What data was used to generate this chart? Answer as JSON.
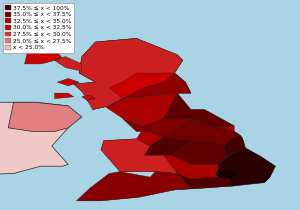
{
  "background_color": "#a8d4e6",
  "sea_color": "#a8d4e6",
  "ireland_color": "#f0c8c8",
  "n_ireland_color": "#e08080",
  "legend_entries": [
    {
      "label": "37.5% ≤ x < 100%",
      "color": "#3d0000"
    },
    {
      "label": "35.0% ≤ x < 37.5%",
      "color": "#700000"
    },
    {
      "label": "32.5% ≤ x < 35.0%",
      "color": "#a00000"
    },
    {
      "label": "30.0% ≤ x < 32.5%",
      "color": "#cc0000"
    },
    {
      "label": "27.5% ≤ x < 30.0%",
      "color": "#e03030"
    },
    {
      "label": "25.0% ≤ x < 27.5%",
      "color": "#e87878"
    },
    {
      "label": "x < 25.0%",
      "color": "#f5c0c0"
    }
  ],
  "figsize": [
    3.0,
    2.1
  ],
  "dpi": 100,
  "legend_fontsize": 4.2,
  "xlim": [
    -8.5,
    2.5
  ],
  "ylim": [
    49.5,
    61.0
  ]
}
